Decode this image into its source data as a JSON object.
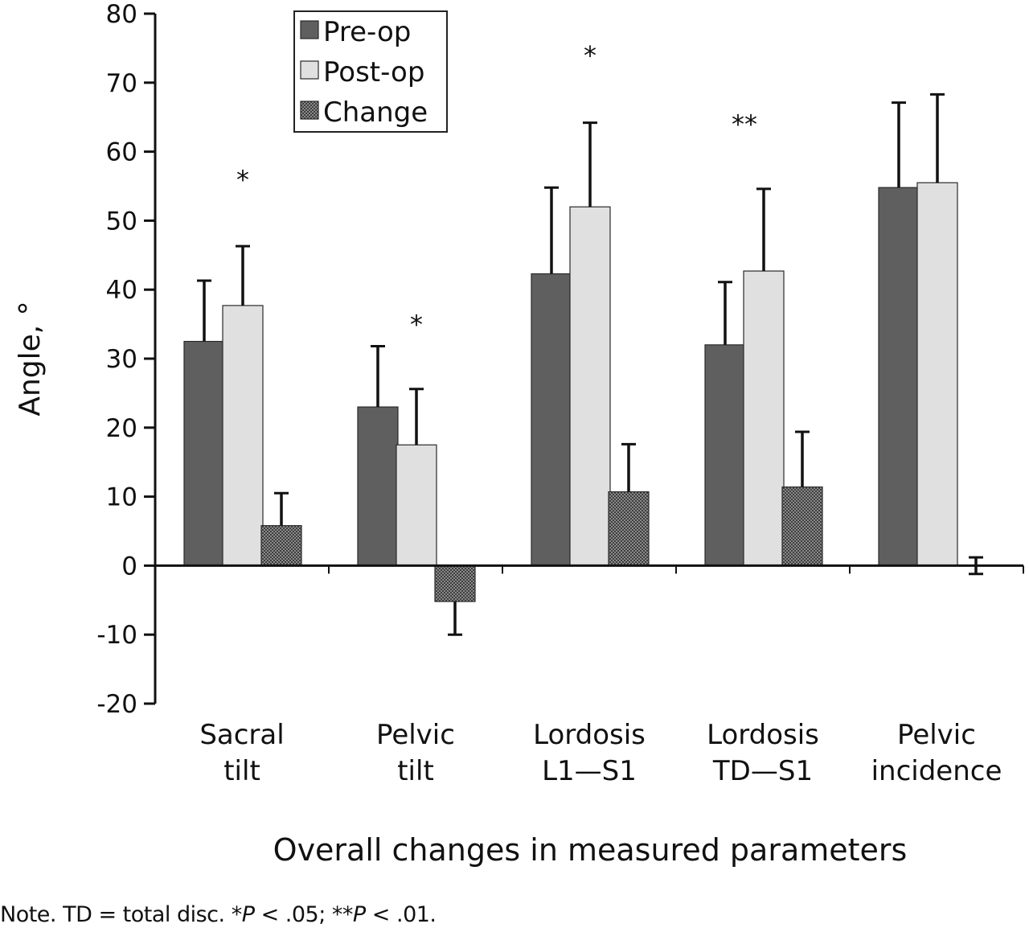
{
  "chart_data": {
    "type": "bar",
    "ylabel": "Angle, °",
    "xlabel": "Overall changes in measured parameters",
    "ylim": [
      -20,
      80
    ],
    "yticks": [
      80,
      70,
      60,
      50,
      40,
      30,
      20,
      10,
      0,
      -10,
      -20
    ],
    "grid": false,
    "legend_position": "top-left",
    "categories": [
      [
        "Sacral",
        "tilt"
      ],
      [
        "Pelvic",
        "tilt"
      ],
      [
        "Lordosis",
        "L1—S1"
      ],
      [
        "Lordosis",
        "TD—S1"
      ],
      [
        "Pelvic",
        "incidence"
      ]
    ],
    "series": [
      {
        "name": "Pre-op",
        "color": "#5f5f5f",
        "pattern": "solid",
        "values": [
          32.5,
          23,
          42.3,
          32,
          54.8
        ],
        "error": [
          8.8,
          8.8,
          12.5,
          9.1,
          12.3
        ]
      },
      {
        "name": "Post-op",
        "color": "#e0e0e0",
        "pattern": "solid",
        "values": [
          37.7,
          17.5,
          52,
          42.7,
          55.5
        ],
        "error": [
          8.6,
          8.1,
          12.2,
          11.9,
          12.8
        ]
      },
      {
        "name": "Change",
        "color": "#707070",
        "pattern": "checker",
        "values": [
          5.8,
          -5.2,
          10.7,
          11.4,
          0
        ],
        "error": [
          4.7,
          4.8,
          6.9,
          8,
          1.2
        ]
      }
    ],
    "annotations": [
      {
        "category": 0,
        "text": "*",
        "y": 57
      },
      {
        "category": 1,
        "text": "*",
        "y": 36
      },
      {
        "category": 2,
        "text": "*",
        "y": 75
      },
      {
        "category": 3,
        "text": "**",
        "y": 65
      }
    ]
  },
  "note": {
    "prefix": "Note. TD = total disc. *",
    "p1": "P",
    "mid": " < .05; **",
    "p2": "P",
    "suffix": " < .01."
  }
}
